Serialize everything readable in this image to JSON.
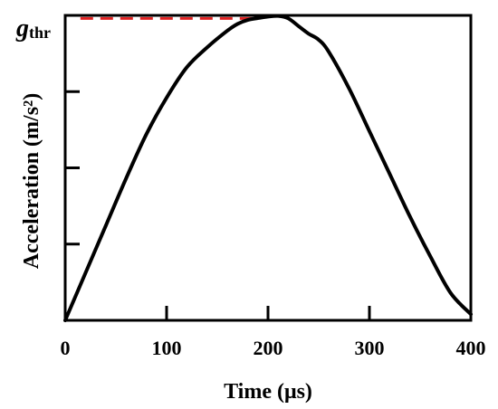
{
  "chart_data": {
    "type": "line",
    "xlabel": "Time (μs)",
    "ylabel": "Acceleration (m/s²)",
    "xlim": [
      0,
      400
    ],
    "xticks": [
      0,
      100,
      200,
      300,
      400
    ],
    "xtick_labels": [
      "0",
      "100",
      "200",
      "300",
      "400"
    ],
    "ylim": [
      0,
      1.0
    ],
    "yticks": [
      0.25,
      0.5,
      0.75
    ],
    "grid": false,
    "threshold": {
      "label_main": "g",
      "label_sub": "thr",
      "value": 0.99,
      "x_range": [
        15,
        190
      ],
      "color": "#e02020",
      "style": "dashed"
    },
    "series": [
      {
        "color": "#000000",
        "x": [
          0,
          20,
          40,
          60,
          80,
          100,
          120,
          140,
          160,
          170,
          180,
          190,
          200,
          210,
          220,
          230,
          240,
          250,
          260,
          280,
          300,
          320,
          340,
          360,
          380,
          400
        ],
        "y": [
          0,
          0.155,
          0.31,
          0.465,
          0.61,
          0.73,
          0.83,
          0.895,
          0.95,
          0.972,
          0.985,
          0.991,
          0.996,
          0.998,
          0.99,
          0.965,
          0.94,
          0.92,
          0.88,
          0.76,
          0.62,
          0.48,
          0.34,
          0.21,
          0.09,
          0.02
        ]
      }
    ]
  }
}
